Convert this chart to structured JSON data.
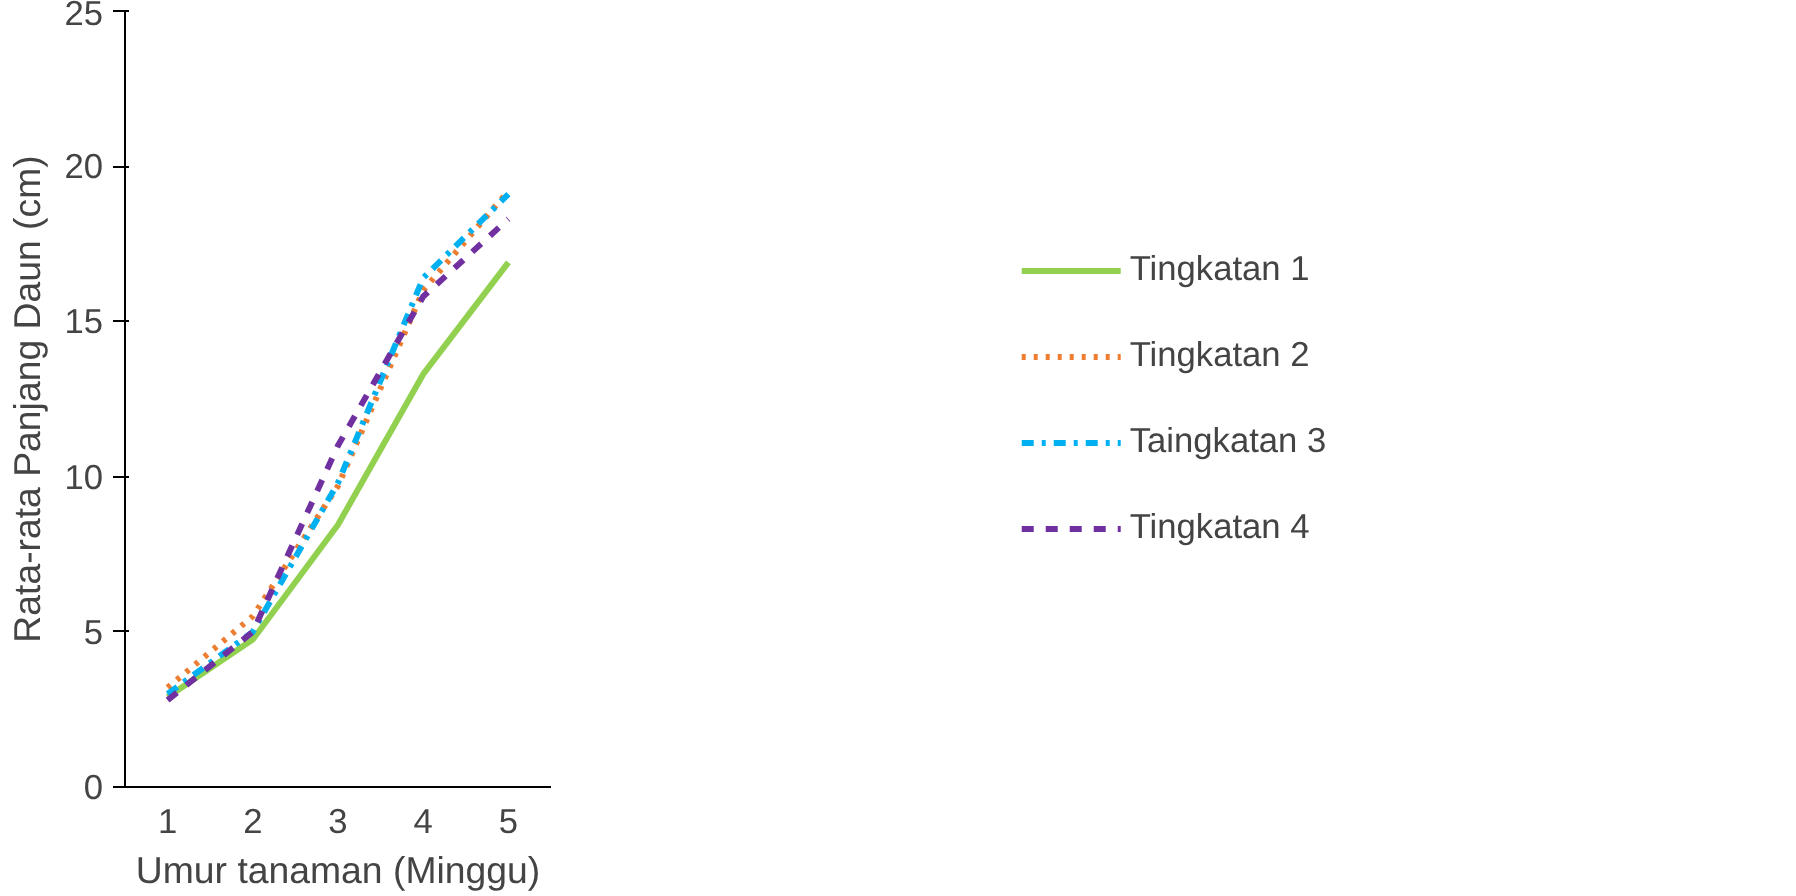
{
  "chart_data": {
    "type": "line",
    "xlabel": "Umur tanaman (Minggu)",
    "ylabel": "Rata-rata Panjang Daun (cm)",
    "categories": [
      "1",
      "2",
      "3",
      "4",
      "5"
    ],
    "series": [
      {
        "name": "Tingkatan 1",
        "color": "#92d050",
        "line_style": "solid",
        "values": [
          2.9,
          4.75,
          8.45,
          13.3,
          16.9
        ]
      },
      {
        "name": "Tingkatan 2",
        "color": "#ed7d31",
        "line_style": "dotted",
        "values": [
          3.2,
          5.5,
          9.7,
          16.0,
          19.2
        ]
      },
      {
        "name": "Taingkatan 3",
        "color": "#00b0f0",
        "line_style": "dashdot",
        "values": [
          3.0,
          5.0,
          9.8,
          16.4,
          19.1
        ]
      },
      {
        "name": "Tingkatan 4",
        "color": "#7030a0",
        "line_style": "dashed",
        "values": [
          2.8,
          5.0,
          11.0,
          15.8,
          18.3
        ]
      }
    ],
    "ylim": [
      0,
      25
    ],
    "yticks": [
      0,
      5,
      10,
      15,
      20,
      25
    ],
    "grid": false,
    "legend": "right"
  }
}
